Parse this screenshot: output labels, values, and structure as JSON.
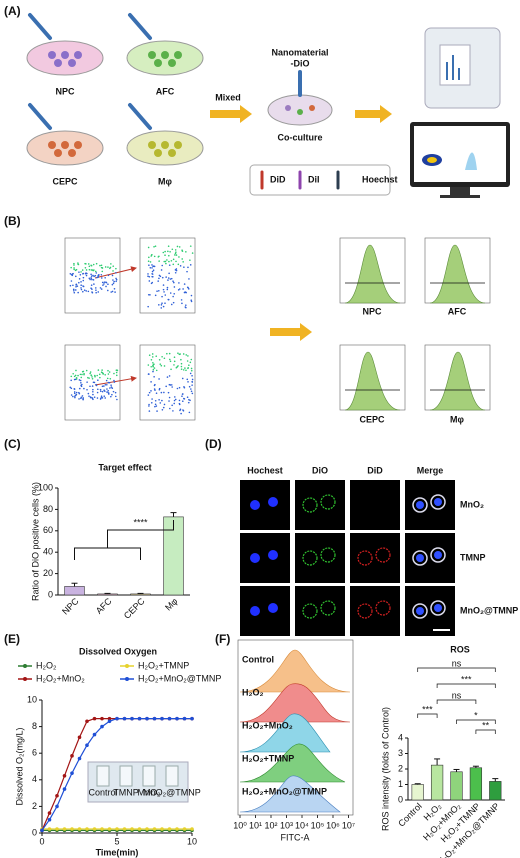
{
  "panels": {
    "labels": [
      "(A)",
      "(B)",
      "(C)",
      "(D)",
      "(E)",
      "(F)"
    ],
    "a": {
      "cells": [
        "NPC",
        "AFC",
        "CEPC",
        "Mφ"
      ],
      "mixed": "Mixed",
      "nanomaterial": [
        "Nanomaterial",
        "-DiO"
      ],
      "coculture": "Co-culture",
      "dyes": [
        "DiD",
        "DiI",
        "Hoechst"
      ]
    },
    "b": {
      "labels": [
        "NPC",
        "AFC",
        "CEPC",
        "Mφ"
      ]
    },
    "d": {
      "columns": [
        "Hochest",
        "DiO",
        "DiD",
        "Merge"
      ],
      "rows": [
        "MnO₂",
        "TMNP",
        "MnO₂@TMNP"
      ]
    },
    "e": {
      "inset": [
        "Control",
        "TMNP",
        "MnO₂",
        "MnO₂@TMNP"
      ]
    },
    "f": {
      "rows": [
        "Control",
        "H₂O₂",
        "H₂O₂+MnO₂",
        "H₂O₂+TMNP",
        "H₂O₂+MnO₂@TMNP"
      ],
      "xticks": [
        "10⁰",
        "10¹",
        "10²",
        "10³",
        "10⁴",
        "10⁵",
        "10⁶",
        "10⁷"
      ],
      "xlabel": "FITC-A"
    }
  },
  "chart_data": [
    {
      "type": "bar",
      "title": "Target effect",
      "ylabel": "Ratio of DiO positive cells (%)",
      "categories": [
        "NPC",
        "AFC",
        "CEPC",
        "Mφ"
      ],
      "values": [
        8,
        1,
        1,
        73
      ],
      "errors": [
        3,
        0.5,
        0.5,
        4
      ],
      "colors": [
        "#c9b3e0",
        "#f2c4d8",
        "#f5e6a8",
        "#c6ecc0"
      ],
      "ylim": [
        0,
        100
      ],
      "yticks": [
        0,
        20,
        40,
        60,
        80,
        100
      ],
      "annotations": [
        "****"
      ]
    },
    {
      "type": "line",
      "title": "Dissolved Oxygen",
      "xlabel": "Time(min)",
      "ylabel": "Dissolved O₂(mg/L)",
      "x": [
        0,
        0.5,
        1,
        1.5,
        2,
        2.5,
        3,
        3.5,
        4,
        4.5,
        5,
        5.5,
        6,
        6.5,
        7,
        7.5,
        8,
        8.5,
        9,
        9.5,
        10
      ],
      "xlim": [
        0,
        10
      ],
      "xticks": [
        0,
        5,
        10
      ],
      "ylim": [
        0,
        10
      ],
      "yticks": [
        0,
        2,
        4,
        6,
        8,
        10
      ],
      "series": [
        {
          "name": "H₂O₂",
          "color": "#2e7d32",
          "values": [
            0.2,
            0.2,
            0.2,
            0.2,
            0.2,
            0.2,
            0.2,
            0.2,
            0.2,
            0.2,
            0.2,
            0.2,
            0.2,
            0.2,
            0.2,
            0.2,
            0.2,
            0.2,
            0.2,
            0.2,
            0.2
          ]
        },
        {
          "name": "H₂O₂+TMNP",
          "color": "#e6d22e",
          "values": [
            0.3,
            0.3,
            0.3,
            0.3,
            0.3,
            0.3,
            0.3,
            0.3,
            0.3,
            0.3,
            0.3,
            0.3,
            0.3,
            0.3,
            0.3,
            0.3,
            0.3,
            0.3,
            0.3,
            0.3,
            0.3
          ]
        },
        {
          "name": "H₂O₂+MnO₂",
          "color": "#a31515",
          "values": [
            0.2,
            1.5,
            2.8,
            4.3,
            5.8,
            7.2,
            8.4,
            8.6,
            8.6,
            8.6,
            8.6,
            8.6,
            8.6,
            8.6,
            8.6,
            8.6,
            8.6,
            8.6,
            8.6,
            8.6,
            8.6
          ]
        },
        {
          "name": "H₂O₂+MnO₂@TMNP",
          "color": "#1f4fd6",
          "values": [
            0.2,
            1.0,
            2.0,
            3.3,
            4.5,
            5.6,
            6.6,
            7.4,
            8.0,
            8.4,
            8.6,
            8.6,
            8.6,
            8.6,
            8.6,
            8.6,
            8.6,
            8.6,
            8.6,
            8.6,
            8.6
          ]
        }
      ]
    },
    {
      "type": "bar",
      "title": "ROS",
      "ylabel": "ROS intensity (folds of Control)",
      "categories": [
        "Control",
        "H₂O₂",
        "H₂O₂+MnO₂",
        "H₂O₂+TMNP",
        "H₂O₂+MnO₂@TMNP"
      ],
      "values": [
        1,
        2.25,
        1.82,
        2.08,
        1.2
      ],
      "errors": [
        0.05,
        0.4,
        0.15,
        0.1,
        0.18
      ],
      "colors": [
        "#e6f5d0",
        "#b8e6a0",
        "#8fd47c",
        "#4cbf4c",
        "#2e9e3e"
      ],
      "ylim": [
        0,
        4
      ],
      "yticks": [
        0,
        1,
        2,
        3,
        4
      ],
      "annotations": [
        "ns",
        "***",
        "ns",
        "***",
        "*",
        "**"
      ]
    }
  ]
}
